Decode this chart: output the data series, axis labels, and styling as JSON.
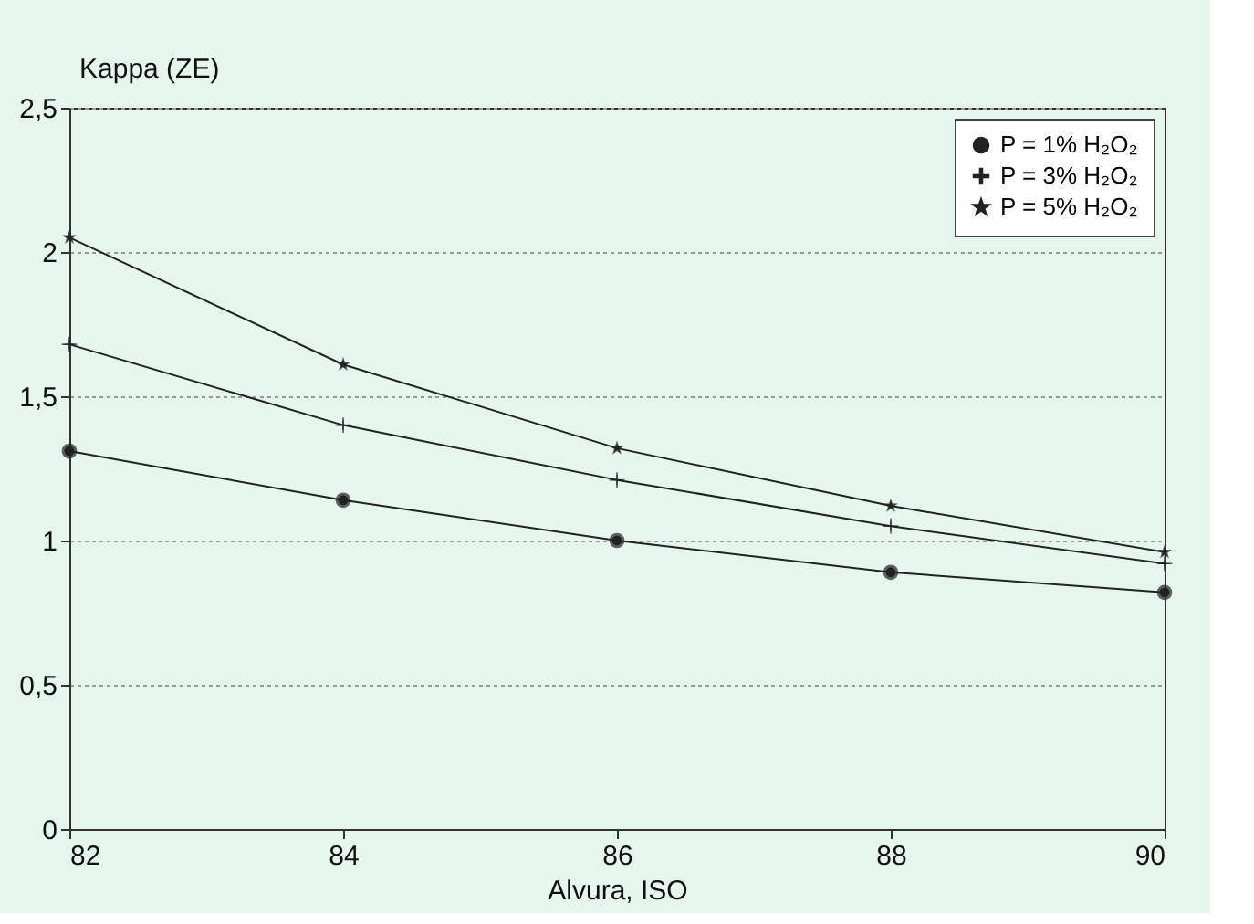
{
  "chart_data": {
    "type": "line",
    "ylabel": "Kappa (ZE)",
    "xlabel": "Alvura, ISO",
    "x": [
      82,
      84,
      86,
      88,
      90
    ],
    "series": [
      {
        "name": "P = 1% H₂O₂",
        "color": "#222222",
        "marker": "circle",
        "values": [
          1.31,
          1.14,
          1.0,
          0.89,
          0.82
        ]
      },
      {
        "name": "P = 3% H₂O₂",
        "color": "#222222",
        "marker": "cross",
        "values": [
          1.68,
          1.4,
          1.21,
          1.05,
          0.92
        ]
      },
      {
        "name": "P = 5% H₂O₂",
        "color": "#222222",
        "marker": "star",
        "values": [
          2.05,
          1.61,
          1.32,
          1.12,
          0.96
        ]
      }
    ],
    "xlim": [
      82,
      90
    ],
    "xticks": [
      82,
      84,
      86,
      88,
      90
    ],
    "ylim": [
      0,
      2.5
    ],
    "yticks": [
      0,
      {
        "value": 0.5,
        "label": "0,5"
      },
      1,
      {
        "value": 1.5,
        "label": "1,5"
      },
      2,
      {
        "value": 2.5,
        "label": "2,5"
      }
    ],
    "grid": "y",
    "legend": "top right",
    "line_style": "solid"
  }
}
